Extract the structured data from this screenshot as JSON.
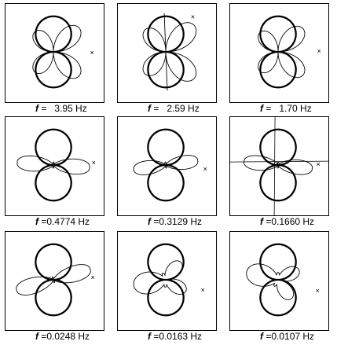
{
  "panels": [
    {
      "f_label": "f",
      "caption": " =   3.95 Hz"
    },
    {
      "f_label": "f",
      "caption": " =   2.59 Hz"
    },
    {
      "f_label": "f",
      "caption": " =   1.70 Hz"
    },
    {
      "f_label": "f",
      "caption": " =0.4774 Hz"
    },
    {
      "f_label": "f",
      "caption": " =0.3129 Hz"
    },
    {
      "f_label": "f",
      "caption": " =0.1660 Hz"
    },
    {
      "f_label": "f",
      "caption": " =0.0248 Hz"
    },
    {
      "f_label": "f",
      "caption": " =0.0163 Hz"
    },
    {
      "f_label": "f",
      "caption": " =0.0107 Hz"
    }
  ]
}
